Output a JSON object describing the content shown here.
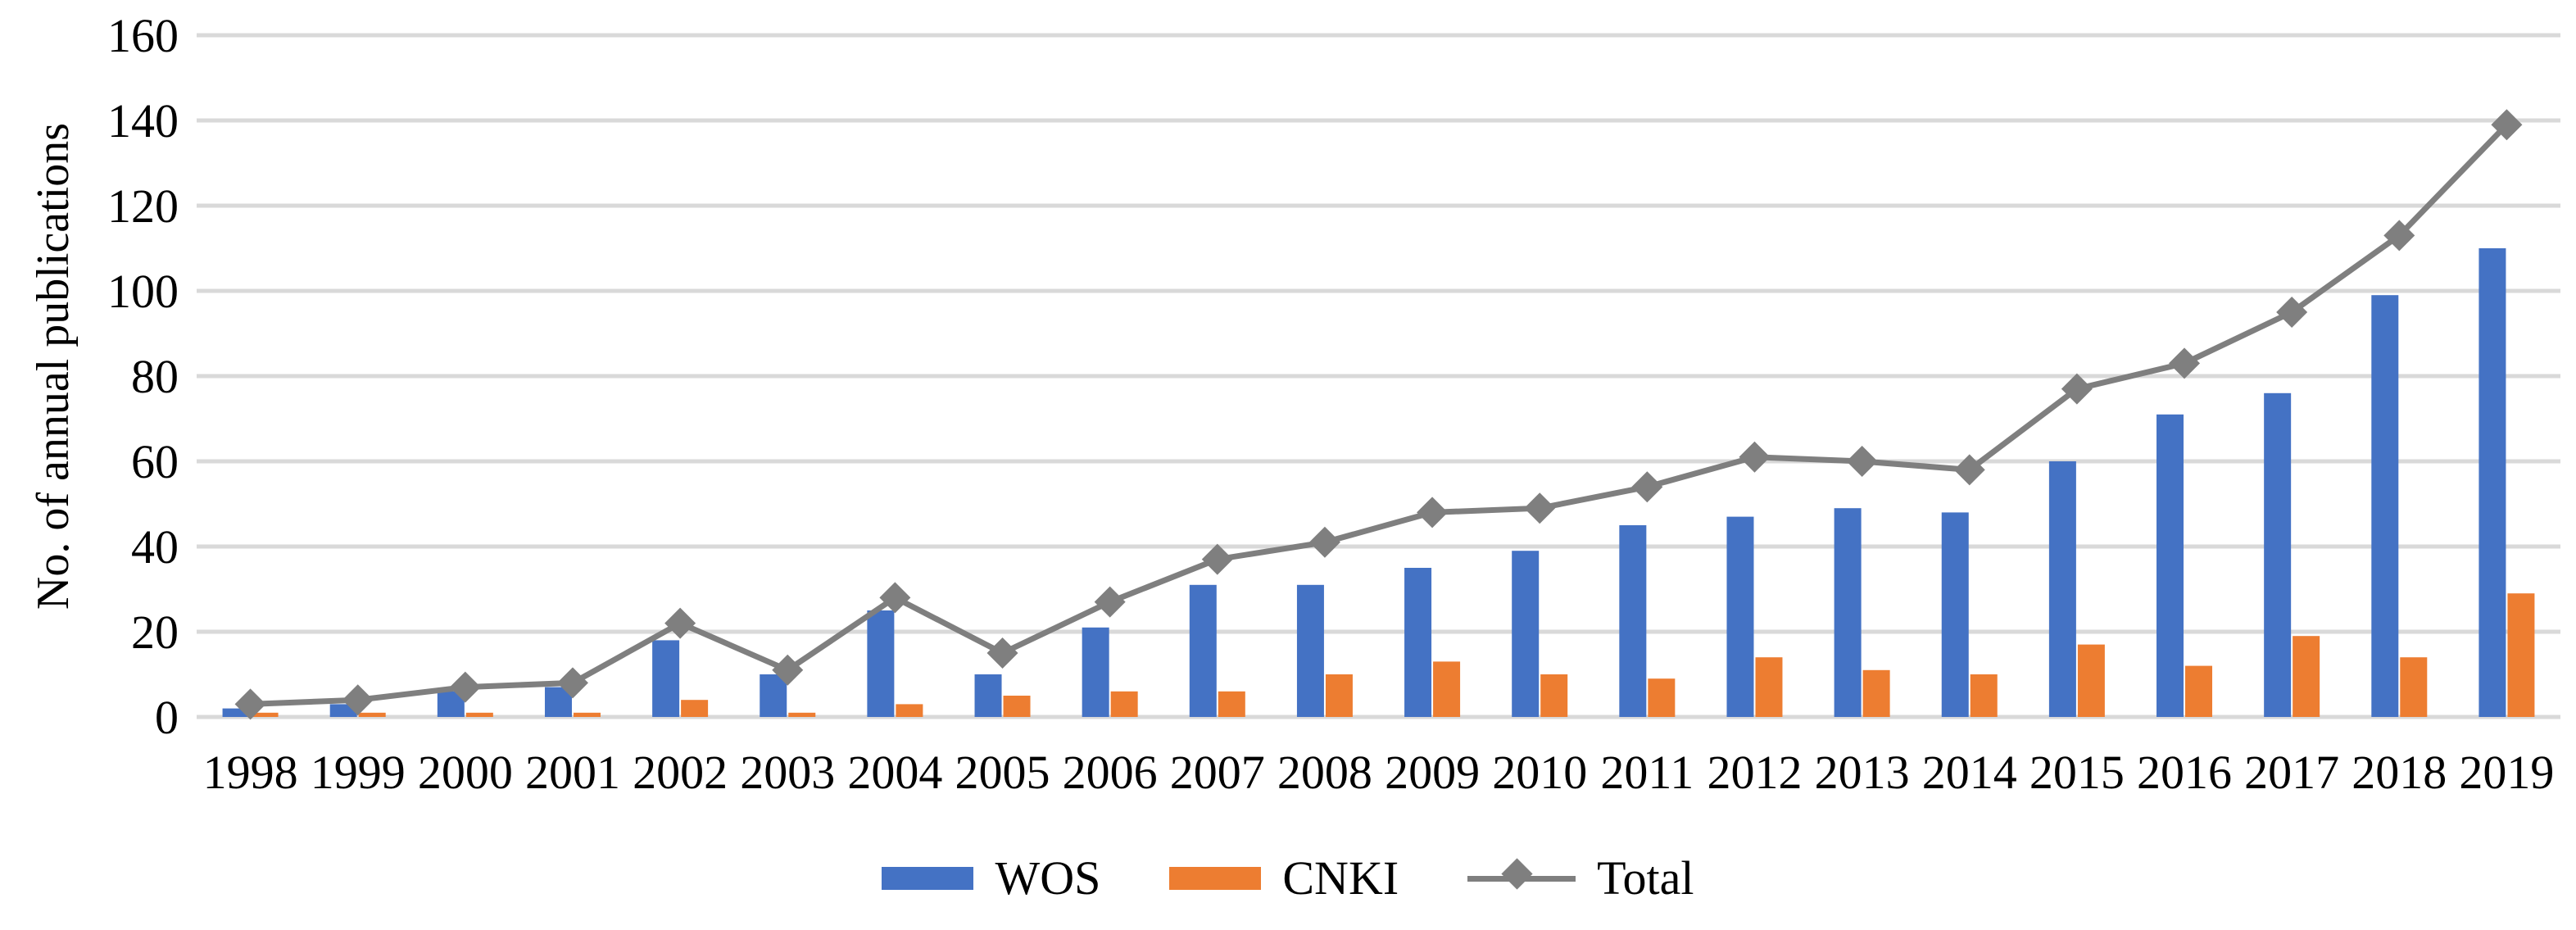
{
  "chart_data": {
    "type": "combo-bar-line",
    "title": "",
    "xlabel": "",
    "ylabel": "No. of annual publications",
    "ylim": [
      0,
      160
    ],
    "ytick_step": 20,
    "ytick_labels": [
      "0",
      "20",
      "40",
      "60",
      "80",
      "100",
      "120",
      "140",
      "160"
    ],
    "grid": "horizontal",
    "gridline_color": "#D9D9D9",
    "legend_position": "bottom",
    "categories": [
      "1998",
      "1999",
      "2000",
      "2001",
      "2002",
      "2003",
      "2004",
      "2005",
      "2006",
      "2007",
      "2008",
      "2009",
      "2010",
      "2011",
      "2012",
      "2013",
      "2014",
      "2015",
      "2016",
      "2017",
      "2018",
      "2019"
    ],
    "series": [
      {
        "name": "WOS",
        "type": "bar",
        "color": "#4472C4",
        "values": [
          2,
          3,
          6,
          7,
          18,
          10,
          25,
          10,
          21,
          31,
          31,
          35,
          39,
          45,
          47,
          49,
          48,
          60,
          71,
          76,
          99,
          110
        ]
      },
      {
        "name": "CNKI",
        "type": "bar",
        "color": "#ED7D31",
        "values": [
          1,
          1,
          1,
          1,
          4,
          1,
          3,
          5,
          6,
          6,
          10,
          13,
          10,
          9,
          14,
          11,
          10,
          17,
          12,
          19,
          14,
          29
        ]
      },
      {
        "name": "Total",
        "type": "line",
        "color": "#7F7F7F",
        "marker": "diamond",
        "values": [
          3,
          4,
          7,
          8,
          22,
          11,
          28,
          15,
          27,
          37,
          41,
          48,
          49,
          54,
          61,
          60,
          58,
          77,
          83,
          95,
          113,
          139
        ]
      }
    ]
  }
}
